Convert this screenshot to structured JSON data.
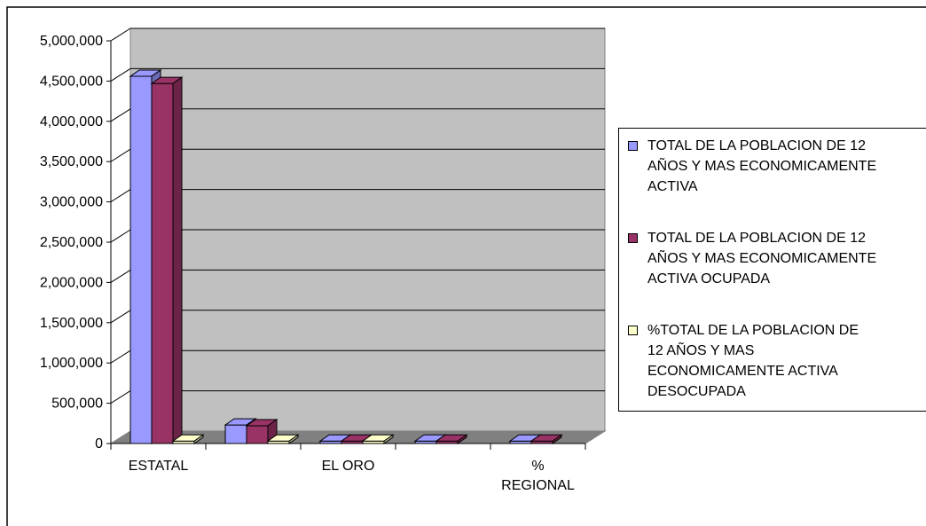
{
  "chart_data": {
    "type": "bar",
    "categories": [
      "ESTATAL",
      "",
      "EL ORO",
      "",
      "%\nREGIONAL"
    ],
    "series": [
      {
        "name": "TOTAL DE LA POBLACION DE 12 AÑOS Y MAS ECONOMICAMENTE ACTIVA",
        "color": "#9999ff",
        "values": [
          4560000,
          230000,
          30000,
          30000,
          30000
        ]
      },
      {
        "name": "TOTAL DE LA POBLACION DE 12 AÑOS Y MAS ECONOMICAMENTE ACTIVA OCUPADA",
        "color": "#993366",
        "values": [
          4470000,
          220000,
          30000,
          30000,
          30000
        ]
      },
      {
        "name": "%TOTAL DE LA POBLACION DE 12 AÑOS Y MAS ECONOMICAMENTE ACTIVA DESOCUPADA",
        "color": "#ffffcc",
        "values": [
          30000,
          30000,
          30000,
          null,
          null
        ]
      }
    ],
    "ylim": [
      0,
      5000000
    ],
    "yticks": [
      "0",
      "500,000",
      "1,000,000",
      "1,500,000",
      "2,000,000",
      "2,500,000",
      "3,000,000",
      "3,500,000",
      "4,000,000",
      "4,500,000",
      "5,000,000"
    ],
    "grid": true,
    "legend": "right",
    "plot_background": "#c0c0c0",
    "title": "",
    "xlabel": "",
    "ylabel": ""
  },
  "legend_labels": [
    "TOTAL DE LA POBLACION DE 12\nAÑOS Y MAS ECONOMICAMENTE\nACTIVA",
    "TOTAL DE LA POBLACION DE 12\nAÑOS Y MAS ECONOMICAMENTE\nACTIVA OCUPADA",
    "%TOTAL DE LA POBLACION DE\n12 AÑOS Y MAS\nECONOMICAMENTE ACTIVA\nDESOCUPADA"
  ]
}
